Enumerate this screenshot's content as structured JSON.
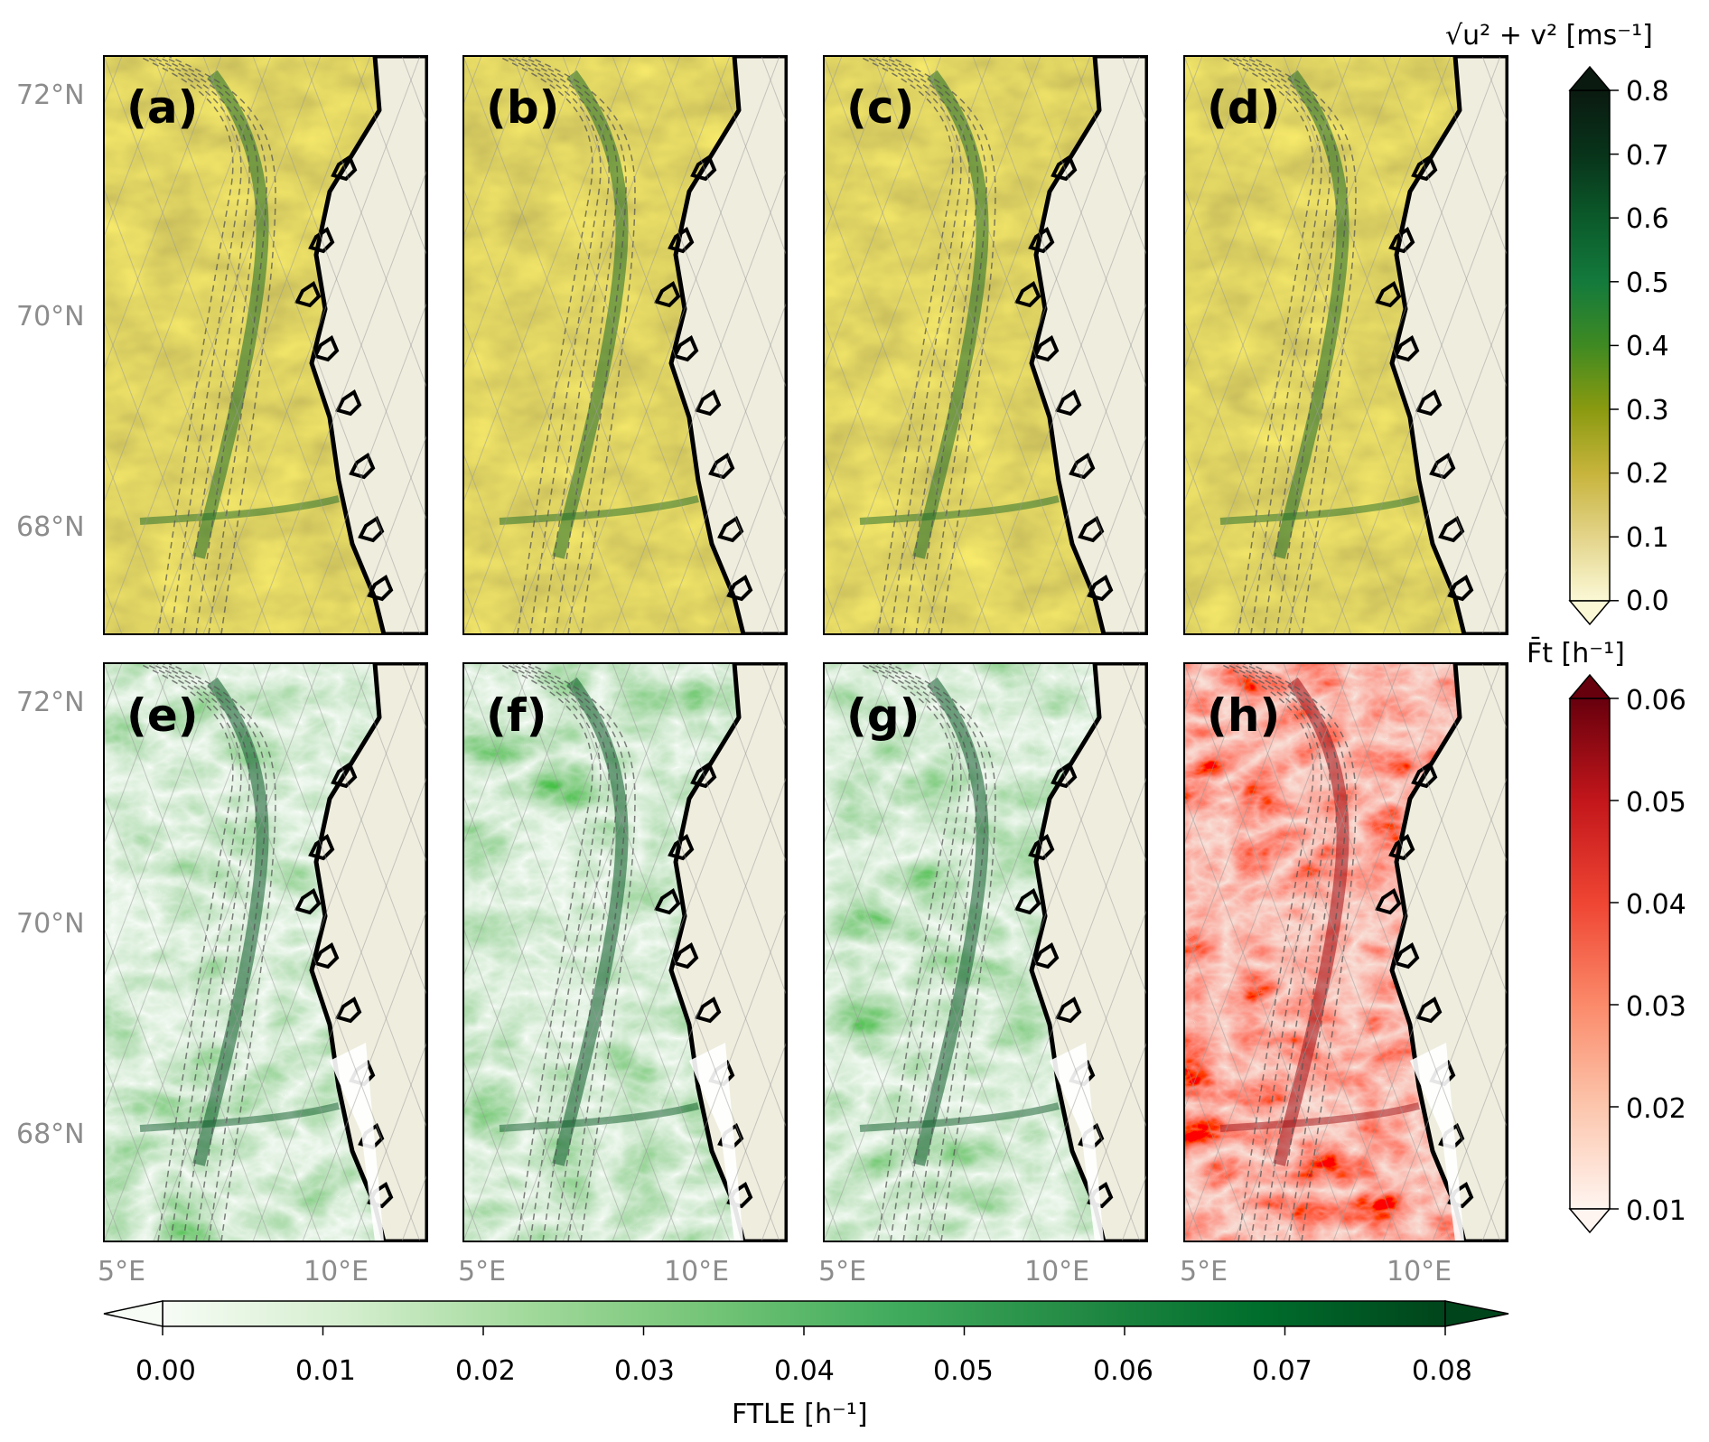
{
  "panels": [
    {
      "label": "(a)",
      "row": 0,
      "kind": "speed"
    },
    {
      "label": "(b)",
      "row": 0,
      "kind": "speed"
    },
    {
      "label": "(c)",
      "row": 0,
      "kind": "speed"
    },
    {
      "label": "(d)",
      "row": 0,
      "kind": "speed"
    },
    {
      "label": "(e)",
      "row": 1,
      "kind": "ftle"
    },
    {
      "label": "(f)",
      "row": 1,
      "kind": "ftle"
    },
    {
      "label": "(g)",
      "row": 1,
      "kind": "ftle"
    },
    {
      "label": "(h)",
      "row": 1,
      "kind": "mean"
    }
  ],
  "latitude_ticks": [
    "72°N",
    "70°N",
    "68°N"
  ],
  "longitude_ticks": [
    "5°E",
    "10°E"
  ],
  "colorbars": {
    "speed": {
      "label": "√u² + v²  [ms⁻¹]",
      "ticks": [
        "0.8",
        "0.7",
        "0.6",
        "0.5",
        "0.4",
        "0.3",
        "0.2",
        "0.1",
        "0.0"
      ],
      "colors": [
        "#fbf8d6",
        "#e3d48a",
        "#c7b43c",
        "#8a9a10",
        "#3f8a22",
        "#137a3c",
        "#0b5a2a",
        "#08331a",
        "#0a1a10"
      ]
    },
    "mean_ft": {
      "label": "F̄t [h⁻¹]",
      "ticks": [
        "0.06",
        "0.05",
        "0.04",
        "0.03",
        "0.02",
        "0.01"
      ],
      "colors": [
        "#fff5f0",
        "#fcc6ad",
        "#fb8a6a",
        "#ef4533",
        "#c2161b",
        "#67000d"
      ]
    },
    "ftle": {
      "label": "FTLE [h⁻¹]",
      "ticks": [
        "0.00",
        "0.01",
        "0.02",
        "0.03",
        "0.04",
        "0.05",
        "0.06",
        "0.07",
        "0.08"
      ],
      "colors": [
        "#f7fcf5",
        "#d4eece",
        "#a1d99b",
        "#73c476",
        "#41ab5d",
        "#228a44",
        "#006d2c",
        "#00441b"
      ]
    }
  },
  "land_color": "#efedde"
}
